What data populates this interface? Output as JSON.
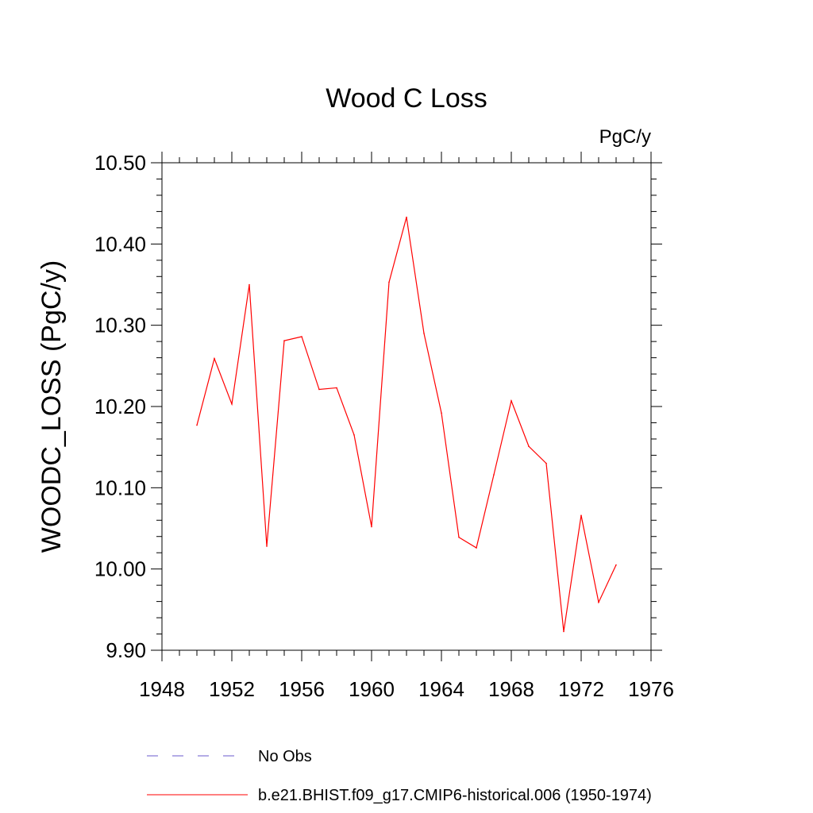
{
  "chart_data": {
    "type": "line",
    "title": "Wood C Loss",
    "units_label": "PgC/y",
    "xlabel": "",
    "ylabel": "WOODC_LOSS  (PgC/y)",
    "xlim": [
      1948,
      1976
    ],
    "ylim": [
      9.9,
      10.5
    ],
    "x_ticks": [
      1948,
      1952,
      1956,
      1960,
      1964,
      1968,
      1972,
      1976
    ],
    "y_ticks": [
      "9.90",
      "10.00",
      "10.10",
      "10.20",
      "10.30",
      "10.40",
      "10.50"
    ],
    "grid": false,
    "legend_position": "bottom",
    "series": [
      {
        "name": "No Obs",
        "color": "#6a5acd",
        "style": "dashed",
        "x": [],
        "values": []
      },
      {
        "name": "b.e21.BHIST.f09_g17.CMIP6-historical.006 (1950-1974)",
        "color": "#ff0000",
        "style": "solid",
        "x": [
          1950,
          1951,
          1952,
          1953,
          1954,
          1955,
          1956,
          1957,
          1958,
          1959,
          1960,
          1961,
          1962,
          1963,
          1964,
          1965,
          1966,
          1967,
          1968,
          1969,
          1970,
          1971,
          1972,
          1973,
          1974
        ],
        "values": [
          10.177,
          10.259,
          10.203,
          10.35,
          10.028,
          10.281,
          10.286,
          10.221,
          10.223,
          10.165,
          10.052,
          10.353,
          10.433,
          10.29,
          10.192,
          10.039,
          10.026,
          10.116,
          10.207,
          10.151,
          10.13,
          9.923,
          10.066,
          9.959,
          10.005
        ]
      }
    ]
  }
}
